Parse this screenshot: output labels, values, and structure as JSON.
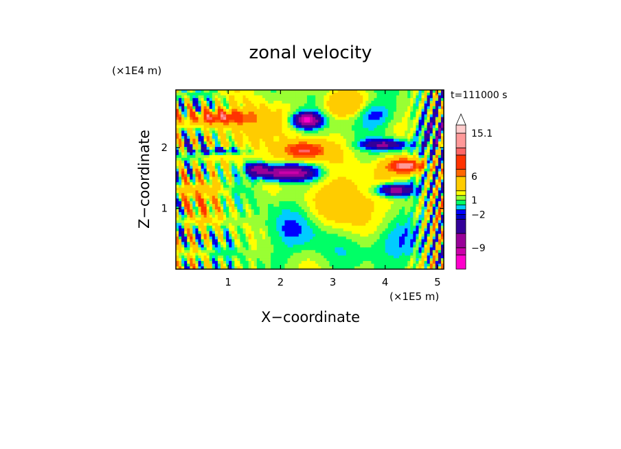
{
  "chart_data": {
    "type": "heatmap",
    "title": "zonal velocity",
    "xlabel": "X−coordinate",
    "ylabel": "Z−coordinate",
    "x_scale_label": "(×1E5 m)",
    "y_scale_label": "(×1E4 m)",
    "time_label": "t=111000 s",
    "xlim": [
      0,
      5.12
    ],
    "ylim": [
      0,
      2.95
    ],
    "x_ticks": [
      {
        "value": 1,
        "label": "1"
      },
      {
        "value": 2,
        "label": "2"
      },
      {
        "value": 3,
        "label": "3"
      },
      {
        "value": 4,
        "label": "4"
      },
      {
        "value": 5,
        "label": "5"
      }
    ],
    "y_ticks": [
      {
        "value": 1,
        "label": "1"
      },
      {
        "value": 2,
        "label": "2"
      }
    ],
    "colorbar": {
      "levels": [
        -13.5,
        -10.5,
        -9,
        -6,
        -3,
        -2,
        -1,
        0,
        1,
        2,
        3,
        6,
        7.5,
        10.5,
        12,
        15.1
      ],
      "colors": [
        "#ff00cc",
        "#cc00aa",
        "#990099",
        "#330099",
        "#0000cc",
        "#0000ff",
        "#00ccff",
        "#00ff66",
        "#99ff33",
        "#ffff00",
        "#ffcc00",
        "#ff6600",
        "#ff3300",
        "#ff6666",
        "#ff9999",
        "#ffcccc"
      ],
      "extend_arrow_color": "#ffffff",
      "tick_labels": [
        {
          "value": 15.1,
          "label": "15.1"
        },
        {
          "value": 6,
          "label": "6"
        },
        {
          "value": 1,
          "label": "1"
        },
        {
          "value": -2,
          "label": "−2"
        },
        {
          "value": -9,
          "label": "−9"
        }
      ]
    },
    "features": [
      {
        "x": 2.5,
        "z": 2.45,
        "amp": -13,
        "sx": 0.25,
        "sz": 0.12
      },
      {
        "x": 2.1,
        "z": 1.58,
        "amp": -12,
        "sx": 0.5,
        "sz": 0.12
      },
      {
        "x": 1.55,
        "z": 1.65,
        "amp": -8,
        "sx": 0.2,
        "sz": 0.1
      },
      {
        "x": 2.45,
        "z": 1.95,
        "amp": 10,
        "sx": 0.4,
        "sz": 0.15
      },
      {
        "x": 4.4,
        "z": 1.7,
        "amp": 12,
        "sx": 0.35,
        "sz": 0.12
      },
      {
        "x": 4.2,
        "z": 1.3,
        "amp": -10,
        "sx": 0.35,
        "sz": 0.1
      },
      {
        "x": 4.0,
        "z": 2.05,
        "amp": -8,
        "sx": 0.4,
        "sz": 0.08
      },
      {
        "x": 0.8,
        "z": 2.5,
        "amp": 9,
        "sx": 0.6,
        "sz": 0.12
      },
      {
        "x": 0.8,
        "z": 1.95,
        "amp": -5,
        "sx": 0.5,
        "sz": 0.06
      },
      {
        "x": 3.3,
        "z": 1.1,
        "amp": 3.5,
        "sx": 0.6,
        "sz": 0.5
      },
      {
        "x": 2.4,
        "z": 0.6,
        "amp": -2,
        "sx": 0.8,
        "sz": 0.4
      },
      {
        "x": 4.1,
        "z": 0.4,
        "amp": -2.5,
        "sx": 0.6,
        "sz": 0.3
      },
      {
        "x": 1.5,
        "z": 2.3,
        "amp": 4,
        "sx": 0.4,
        "sz": 0.4
      },
      {
        "x": 3.8,
        "z": 2.55,
        "amp": -3,
        "sx": 0.4,
        "sz": 0.2
      },
      {
        "x": 4.9,
        "z": 2.2,
        "amp": -4,
        "sx": 0.3,
        "sz": 0.3
      },
      {
        "x": 3.2,
        "z": 2.7,
        "amp": 4,
        "sx": 0.4,
        "sz": 0.2
      },
      {
        "x": 0.4,
        "z": 1.2,
        "amp": 3,
        "sx": 0.5,
        "sz": 0.5
      }
    ]
  }
}
